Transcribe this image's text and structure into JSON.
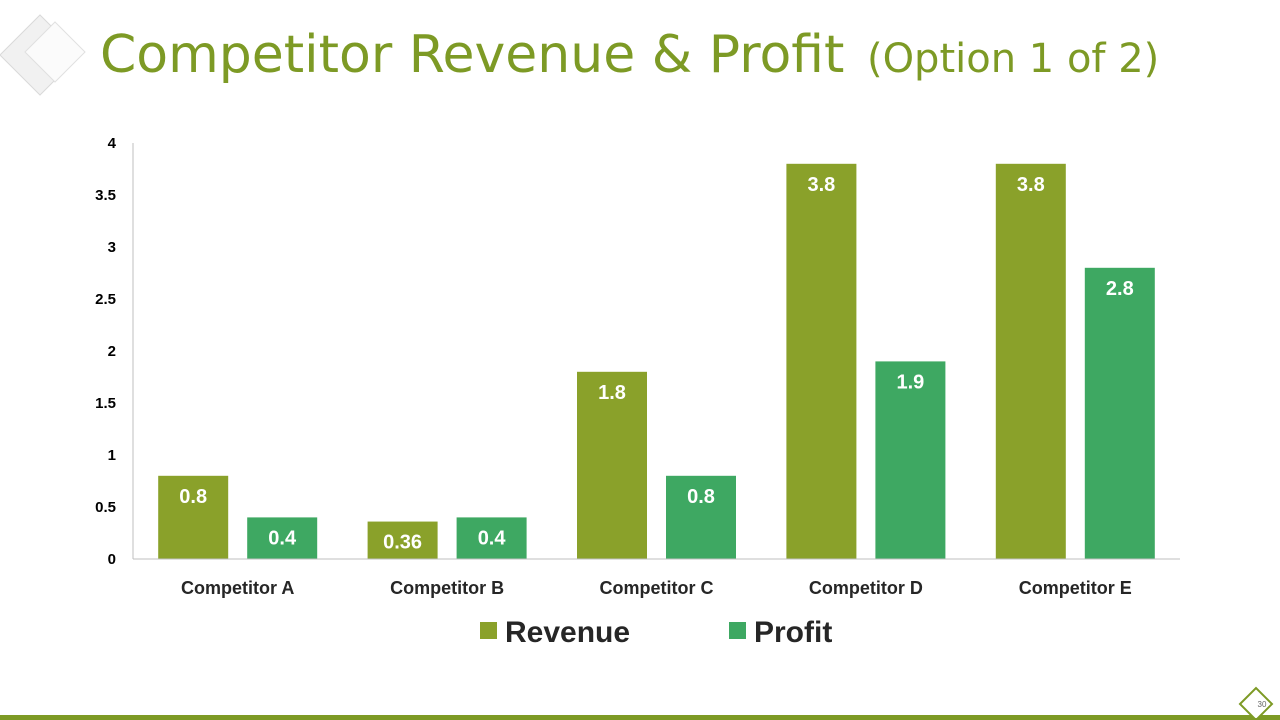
{
  "slide": {
    "title": "Competitor Revenue & Profit",
    "title_suffix": "(Option 1 of 2)",
    "page_number": "30"
  },
  "colors": {
    "title": "#7d9a25",
    "revenue": "#8aa12a",
    "profit": "#3ea862",
    "rule": "#7d9a25"
  },
  "chart_data": {
    "type": "bar",
    "categories": [
      "Competitor A",
      "Competitor B",
      "Competitor C",
      "Competitor D",
      "Competitor E"
    ],
    "series": [
      {
        "name": "Revenue",
        "values": [
          0.8,
          0.36,
          1.8,
          3.8,
          3.8
        ],
        "color": "#8aa12a"
      },
      {
        "name": "Profit",
        "values": [
          0.4,
          0.4,
          0.8,
          1.9,
          2.8
        ],
        "color": "#3ea862"
      }
    ],
    "y_ticks": [
      "0",
      "0.5",
      "1",
      "1.5",
      "2",
      "2.5",
      "3",
      "3.5",
      "4"
    ],
    "ylim": [
      0,
      4
    ],
    "grid": false,
    "legend": "bottom",
    "data_labels": true
  }
}
